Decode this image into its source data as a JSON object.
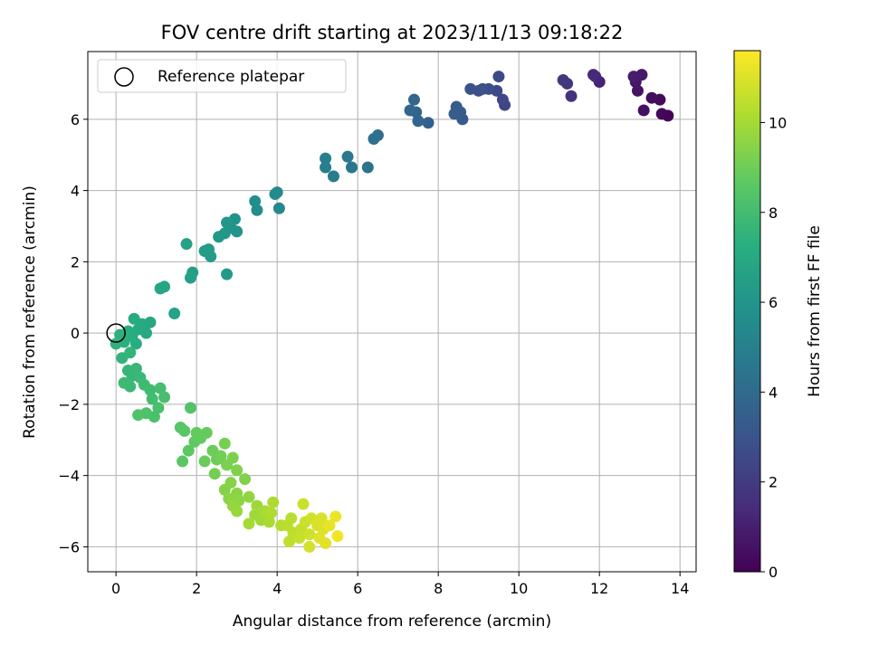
{
  "chart_data": {
    "type": "scatter",
    "title": "FOV centre drift starting at 2023/11/13 09:18:22",
    "xlabel": "Angular distance from reference (arcmin)",
    "ylabel": "Rotation from reference (arcmin)",
    "xlim": [
      -0.7,
      14.4
    ],
    "ylim": [
      -6.7,
      7.9
    ],
    "xticks": [
      0,
      2,
      4,
      6,
      8,
      10,
      12,
      14
    ],
    "yticks": [
      -6,
      -4,
      -2,
      0,
      2,
      4,
      6
    ],
    "grid": true,
    "legend": {
      "position": "top-left",
      "entries": [
        "Reference platepar"
      ]
    },
    "reference_point": {
      "x": 0,
      "y": 0,
      "style": "open-circle"
    },
    "colorbar": {
      "label": "Hours from first FF file",
      "colormap": "viridis",
      "range": [
        0,
        11.6
      ],
      "ticks": [
        0,
        2,
        4,
        6,
        8,
        10
      ]
    },
    "points": [
      {
        "x": 13.7,
        "y": 6.1,
        "h": 0.1
      },
      {
        "x": 13.55,
        "y": 6.15,
        "h": 0.2
      },
      {
        "x": 13.5,
        "y": 6.55,
        "h": 0.3
      },
      {
        "x": 13.3,
        "y": 6.6,
        "h": 0.4
      },
      {
        "x": 13.1,
        "y": 6.25,
        "h": 0.5
      },
      {
        "x": 12.95,
        "y": 6.8,
        "h": 0.6
      },
      {
        "x": 12.9,
        "y": 7.05,
        "h": 0.7
      },
      {
        "x": 13.05,
        "y": 7.25,
        "h": 0.8
      },
      {
        "x": 12.85,
        "y": 7.2,
        "h": 0.9
      },
      {
        "x": 12.0,
        "y": 7.05,
        "h": 1.1
      },
      {
        "x": 11.9,
        "y": 7.2,
        "h": 1.3
      },
      {
        "x": 11.85,
        "y": 7.25,
        "h": 1.4
      },
      {
        "x": 11.3,
        "y": 6.65,
        "h": 1.7
      },
      {
        "x": 11.2,
        "y": 7.0,
        "h": 1.8
      },
      {
        "x": 11.1,
        "y": 7.1,
        "h": 1.9
      },
      {
        "x": 9.65,
        "y": 6.4,
        "h": 2.4
      },
      {
        "x": 9.6,
        "y": 6.55,
        "h": 2.45
      },
      {
        "x": 9.45,
        "y": 6.8,
        "h": 2.55
      },
      {
        "x": 9.5,
        "y": 7.2,
        "h": 2.6
      },
      {
        "x": 9.25,
        "y": 6.85,
        "h": 2.7
      },
      {
        "x": 9.1,
        "y": 6.85,
        "h": 2.8
      },
      {
        "x": 9.0,
        "y": 6.8,
        "h": 2.9
      },
      {
        "x": 8.8,
        "y": 6.85,
        "h": 3.0
      },
      {
        "x": 8.6,
        "y": 6.0,
        "h": 3.2
      },
      {
        "x": 8.55,
        "y": 6.2,
        "h": 3.3
      },
      {
        "x": 8.45,
        "y": 6.35,
        "h": 3.35
      },
      {
        "x": 8.4,
        "y": 6.15,
        "h": 3.4
      },
      {
        "x": 7.75,
        "y": 5.9,
        "h": 3.6
      },
      {
        "x": 7.5,
        "y": 5.95,
        "h": 3.7
      },
      {
        "x": 7.45,
        "y": 6.2,
        "h": 3.75
      },
      {
        "x": 7.4,
        "y": 6.55,
        "h": 3.8
      },
      {
        "x": 7.3,
        "y": 6.25,
        "h": 3.85
      },
      {
        "x": 6.5,
        "y": 5.55,
        "h": 4.2
      },
      {
        "x": 6.4,
        "y": 5.45,
        "h": 4.3
      },
      {
        "x": 6.25,
        "y": 4.65,
        "h": 4.4
      },
      {
        "x": 5.85,
        "y": 4.65,
        "h": 4.55
      },
      {
        "x": 5.75,
        "y": 4.95,
        "h": 4.6
      },
      {
        "x": 5.4,
        "y": 4.4,
        "h": 4.8
      },
      {
        "x": 5.2,
        "y": 4.65,
        "h": 4.9
      },
      {
        "x": 5.2,
        "y": 4.9,
        "h": 4.95
      },
      {
        "x": 4.05,
        "y": 3.5,
        "h": 5.4
      },
      {
        "x": 4.0,
        "y": 3.95,
        "h": 5.45
      },
      {
        "x": 3.95,
        "y": 3.9,
        "h": 5.5
      },
      {
        "x": 3.5,
        "y": 3.45,
        "h": 5.6
      },
      {
        "x": 3.45,
        "y": 3.7,
        "h": 5.65
      },
      {
        "x": 2.95,
        "y": 3.2,
        "h": 5.9
      },
      {
        "x": 3.0,
        "y": 2.85,
        "h": 5.95
      },
      {
        "x": 2.85,
        "y": 2.95,
        "h": 6.0
      },
      {
        "x": 2.75,
        "y": 3.1,
        "h": 6.05
      },
      {
        "x": 2.7,
        "y": 2.8,
        "h": 6.1
      },
      {
        "x": 2.55,
        "y": 2.7,
        "h": 6.15
      },
      {
        "x": 2.75,
        "y": 1.65,
        "h": 6.2
      },
      {
        "x": 2.3,
        "y": 2.35,
        "h": 6.3
      },
      {
        "x": 2.35,
        "y": 2.15,
        "h": 6.35
      },
      {
        "x": 2.2,
        "y": 2.3,
        "h": 6.4
      },
      {
        "x": 1.9,
        "y": 1.7,
        "h": 6.5
      },
      {
        "x": 1.85,
        "y": 1.55,
        "h": 6.55
      },
      {
        "x": 1.75,
        "y": 2.5,
        "h": 6.6
      },
      {
        "x": 1.45,
        "y": 0.55,
        "h": 6.7
      },
      {
        "x": 1.2,
        "y": 1.3,
        "h": 6.75
      },
      {
        "x": 1.1,
        "y": 1.25,
        "h": 6.8
      },
      {
        "x": 0.85,
        "y": 0.3,
        "h": 6.9
      },
      {
        "x": 0.75,
        "y": 0.0,
        "h": 6.95
      },
      {
        "x": 0.65,
        "y": 0.25,
        "h": 7.0
      },
      {
        "x": 0.55,
        "y": 0.1,
        "h": 7.05
      },
      {
        "x": 0.45,
        "y": 0.4,
        "h": 7.1
      },
      {
        "x": 0.5,
        "y": -0.3,
        "h": 7.15
      },
      {
        "x": 0.4,
        "y": -0.1,
        "h": 7.2
      },
      {
        "x": 0.3,
        "y": 0.05,
        "h": 7.25
      },
      {
        "x": 0.2,
        "y": -0.25,
        "h": 7.3
      },
      {
        "x": 0.1,
        "y": -0.05,
        "h": 7.35
      },
      {
        "x": 0.0,
        "y": -0.3,
        "h": 7.4
      },
      {
        "x": 0.15,
        "y": -0.7,
        "h": 7.5
      },
      {
        "x": 0.35,
        "y": -0.55,
        "h": 7.55
      },
      {
        "x": 0.3,
        "y": -1.05,
        "h": 7.6
      },
      {
        "x": 0.4,
        "y": -1.2,
        "h": 7.65
      },
      {
        "x": 0.5,
        "y": -1.0,
        "h": 7.7
      },
      {
        "x": 0.6,
        "y": -1.25,
        "h": 7.75
      },
      {
        "x": 0.35,
        "y": -1.5,
        "h": 7.8
      },
      {
        "x": 0.2,
        "y": -1.4,
        "h": 7.85
      },
      {
        "x": 0.7,
        "y": -1.45,
        "h": 7.9
      },
      {
        "x": 0.85,
        "y": -1.6,
        "h": 7.95
      },
      {
        "x": 0.9,
        "y": -1.85,
        "h": 8.0
      },
      {
        "x": 1.1,
        "y": -1.55,
        "h": 8.05
      },
      {
        "x": 1.2,
        "y": -1.8,
        "h": 8.1
      },
      {
        "x": 1.05,
        "y": -2.1,
        "h": 8.15
      },
      {
        "x": 0.95,
        "y": -2.35,
        "h": 8.2
      },
      {
        "x": 0.75,
        "y": -2.25,
        "h": 8.25
      },
      {
        "x": 0.55,
        "y": -2.3,
        "h": 8.3
      },
      {
        "x": 1.85,
        "y": -2.1,
        "h": 8.4
      },
      {
        "x": 1.6,
        "y": -2.65,
        "h": 8.5
      },
      {
        "x": 1.7,
        "y": -2.75,
        "h": 8.55
      },
      {
        "x": 1.65,
        "y": -3.6,
        "h": 8.6
      },
      {
        "x": 1.8,
        "y": -3.3,
        "h": 8.65
      },
      {
        "x": 1.95,
        "y": -3.05,
        "h": 8.7
      },
      {
        "x": 2.0,
        "y": -2.8,
        "h": 8.75
      },
      {
        "x": 2.1,
        "y": -2.95,
        "h": 8.8
      },
      {
        "x": 2.25,
        "y": -2.8,
        "h": 8.85
      },
      {
        "x": 2.2,
        "y": -3.6,
        "h": 8.9
      },
      {
        "x": 2.4,
        "y": -3.3,
        "h": 8.95
      },
      {
        "x": 2.5,
        "y": -3.55,
        "h": 9.0
      },
      {
        "x": 2.6,
        "y": -3.45,
        "h": 9.05
      },
      {
        "x": 2.45,
        "y": -3.95,
        "h": 9.1
      },
      {
        "x": 2.7,
        "y": -3.1,
        "h": 9.15
      },
      {
        "x": 2.75,
        "y": -3.7,
        "h": 9.2
      },
      {
        "x": 2.9,
        "y": -3.5,
        "h": 9.25
      },
      {
        "x": 3.0,
        "y": -3.85,
        "h": 9.3
      },
      {
        "x": 3.2,
        "y": -4.1,
        "h": 9.35
      },
      {
        "x": 2.7,
        "y": -4.4,
        "h": 9.4
      },
      {
        "x": 2.85,
        "y": -4.2,
        "h": 9.45
      },
      {
        "x": 3.0,
        "y": -4.5,
        "h": 9.5
      },
      {
        "x": 2.8,
        "y": -4.65,
        "h": 9.55
      },
      {
        "x": 3.05,
        "y": -4.7,
        "h": 9.6
      },
      {
        "x": 3.3,
        "y": -4.6,
        "h": 9.65
      },
      {
        "x": 2.9,
        "y": -4.85,
        "h": 9.7
      },
      {
        "x": 3.0,
        "y": -5.0,
        "h": 9.75
      },
      {
        "x": 3.5,
        "y": -4.85,
        "h": 9.85
      },
      {
        "x": 3.45,
        "y": -5.1,
        "h": 9.9
      },
      {
        "x": 3.6,
        "y": -5.25,
        "h": 9.95
      },
      {
        "x": 3.3,
        "y": -5.35,
        "h": 10.0
      },
      {
        "x": 3.7,
        "y": -5.0,
        "h": 10.05
      },
      {
        "x": 3.8,
        "y": -5.3,
        "h": 10.1
      },
      {
        "x": 3.9,
        "y": -4.75,
        "h": 10.15
      },
      {
        "x": 3.85,
        "y": -5.05,
        "h": 10.2
      },
      {
        "x": 4.1,
        "y": -5.4,
        "h": 10.3
      },
      {
        "x": 4.35,
        "y": -5.2,
        "h": 10.35
      },
      {
        "x": 4.25,
        "y": -5.4,
        "h": 10.4
      },
      {
        "x": 4.4,
        "y": -5.6,
        "h": 10.45
      },
      {
        "x": 4.3,
        "y": -5.85,
        "h": 10.5
      },
      {
        "x": 4.6,
        "y": -5.5,
        "h": 10.55
      },
      {
        "x": 4.55,
        "y": -5.75,
        "h": 10.6
      },
      {
        "x": 4.7,
        "y": -5.3,
        "h": 10.65
      },
      {
        "x": 4.65,
        "y": -4.8,
        "h": 10.7
      },
      {
        "x": 4.8,
        "y": -5.65,
        "h": 10.75
      },
      {
        "x": 4.85,
        "y": -5.2,
        "h": 10.8
      },
      {
        "x": 4.8,
        "y": -6.0,
        "h": 10.85
      },
      {
        "x": 5.0,
        "y": -5.4,
        "h": 10.9
      },
      {
        "x": 5.1,
        "y": -5.2,
        "h": 10.95
      },
      {
        "x": 5.15,
        "y": -5.5,
        "h": 11.0
      },
      {
        "x": 5.05,
        "y": -5.75,
        "h": 11.05
      },
      {
        "x": 5.2,
        "y": -5.9,
        "h": 11.1
      },
      {
        "x": 5.3,
        "y": -5.4,
        "h": 11.2
      },
      {
        "x": 5.45,
        "y": -5.15,
        "h": 11.3
      },
      {
        "x": 5.5,
        "y": -5.7,
        "h": 11.4
      }
    ]
  }
}
